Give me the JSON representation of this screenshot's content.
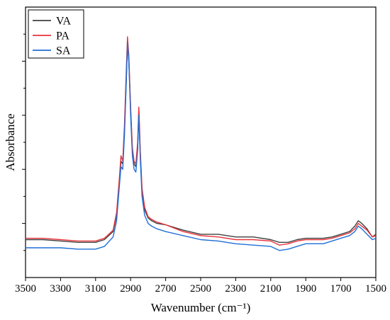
{
  "chart_data": {
    "type": "line",
    "xlabel": "Wavenumber (cm⁻¹)",
    "ylabel": "Absorbance",
    "xlim": [
      3500,
      1500
    ],
    "x_reversed": true,
    "ylim": [
      0,
      1
    ],
    "y_tick_labels_shown": false,
    "grid": false,
    "legend_position": "top-left",
    "x_ticks": [
      3500,
      3300,
      3100,
      2900,
      2700,
      2500,
      2300,
      2100,
      1900,
      1700,
      1500
    ],
    "x_tick_labels": [
      "3500",
      "3300",
      "3100",
      "2900",
      "2700",
      "2500",
      "2300",
      "2100",
      "1900",
      "1700",
      "1500"
    ],
    "y_ticks": [
      0.1,
      0.2,
      0.3,
      0.4,
      0.5,
      0.6,
      0.7,
      0.8,
      0.9
    ],
    "x": [
      3500,
      3400,
      3300,
      3200,
      3100,
      3050,
      3000,
      2980,
      2965,
      2955,
      2945,
      2935,
      2925,
      2918,
      2910,
      2900,
      2890,
      2880,
      2870,
      2860,
      2853,
      2845,
      2835,
      2820,
      2800,
      2780,
      2750,
      2700,
      2600,
      2500,
      2400,
      2300,
      2200,
      2100,
      2050,
      2000,
      1950,
      1900,
      1850,
      1800,
      1750,
      1700,
      1650,
      1620,
      1600,
      1580,
      1550,
      1520,
      1500
    ],
    "series": [
      {
        "name": "VA",
        "color": "#404040",
        "values": [
          0.14,
          0.14,
          0.135,
          0.13,
          0.13,
          0.14,
          0.17,
          0.23,
          0.35,
          0.43,
          0.42,
          0.55,
          0.72,
          0.86,
          0.8,
          0.62,
          0.47,
          0.42,
          0.41,
          0.48,
          0.62,
          0.46,
          0.32,
          0.25,
          0.22,
          0.21,
          0.2,
          0.195,
          0.175,
          0.16,
          0.16,
          0.15,
          0.15,
          0.14,
          0.13,
          0.13,
          0.14,
          0.145,
          0.145,
          0.145,
          0.15,
          0.16,
          0.17,
          0.19,
          0.21,
          0.2,
          0.18,
          0.15,
          0.16
        ]
      },
      {
        "name": "PA",
        "color": "#e8333a",
        "values": [
          0.145,
          0.145,
          0.14,
          0.135,
          0.135,
          0.145,
          0.175,
          0.24,
          0.36,
          0.45,
          0.43,
          0.57,
          0.76,
          0.89,
          0.82,
          0.63,
          0.48,
          0.43,
          0.42,
          0.5,
          0.63,
          0.47,
          0.33,
          0.26,
          0.225,
          0.215,
          0.205,
          0.195,
          0.17,
          0.155,
          0.15,
          0.14,
          0.14,
          0.135,
          0.12,
          0.125,
          0.135,
          0.14,
          0.14,
          0.14,
          0.145,
          0.155,
          0.165,
          0.18,
          0.2,
          0.19,
          0.175,
          0.15,
          0.155
        ]
      },
      {
        "name": "SA",
        "color": "#1f6fd6",
        "values": [
          0.11,
          0.11,
          0.11,
          0.105,
          0.105,
          0.115,
          0.15,
          0.21,
          0.33,
          0.41,
          0.4,
          0.53,
          0.72,
          0.87,
          0.8,
          0.6,
          0.45,
          0.4,
          0.39,
          0.47,
          0.6,
          0.44,
          0.3,
          0.23,
          0.2,
          0.19,
          0.18,
          0.17,
          0.155,
          0.14,
          0.135,
          0.125,
          0.12,
          0.115,
          0.1,
          0.105,
          0.115,
          0.125,
          0.125,
          0.125,
          0.135,
          0.145,
          0.155,
          0.17,
          0.19,
          0.18,
          0.16,
          0.14,
          0.145
        ]
      }
    ]
  }
}
